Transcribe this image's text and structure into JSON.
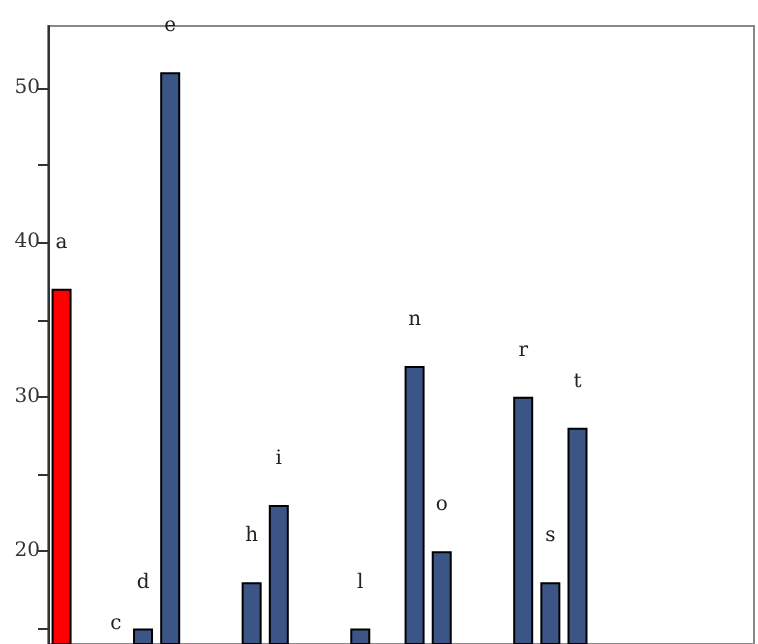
{
  "chart_data": {
    "type": "bar",
    "categories": [
      "a",
      null,
      "c",
      "d",
      "e",
      null,
      null,
      "h",
      "i",
      null,
      null,
      "l",
      null,
      "n",
      "o",
      null,
      null,
      "r",
      "s",
      "t",
      null,
      null,
      null,
      null,
      null,
      null
    ],
    "values": [
      37,
      null,
      null,
      15,
      51,
      null,
      null,
      18,
      23,
      null,
      null,
      15,
      null,
      32,
      20,
      null,
      null,
      30,
      18,
      28,
      null,
      null,
      null,
      null,
      null,
      null
    ],
    "colors": [
      "#ff0000",
      "#3b5686",
      "#3b5686",
      "#3b5686",
      "#3b5686",
      "#3b5686",
      "#3b5686",
      "#3b5686",
      "#3b5686",
      "#3b5686",
      "#3b5686",
      "#3b5686",
      "#3b5686",
      "#3b5686",
      "#3b5686",
      "#3b5686",
      "#3b5686",
      "#3b5686",
      "#3b5686",
      "#3b5686",
      "#3b5686",
      "#3b5686",
      "#3b5686",
      "#3b5686",
      "#3b5686",
      "#3b5686"
    ],
    "ylim": [
      14,
      54
    ],
    "yticks": [
      {
        "value": 15,
        "label": null
      },
      20,
      {
        "value": 25,
        "label": null
      },
      30,
      {
        "value": 35,
        "label": null
      },
      40,
      {
        "value": 45,
        "label": null
      },
      50
    ],
    "grid": false
  }
}
